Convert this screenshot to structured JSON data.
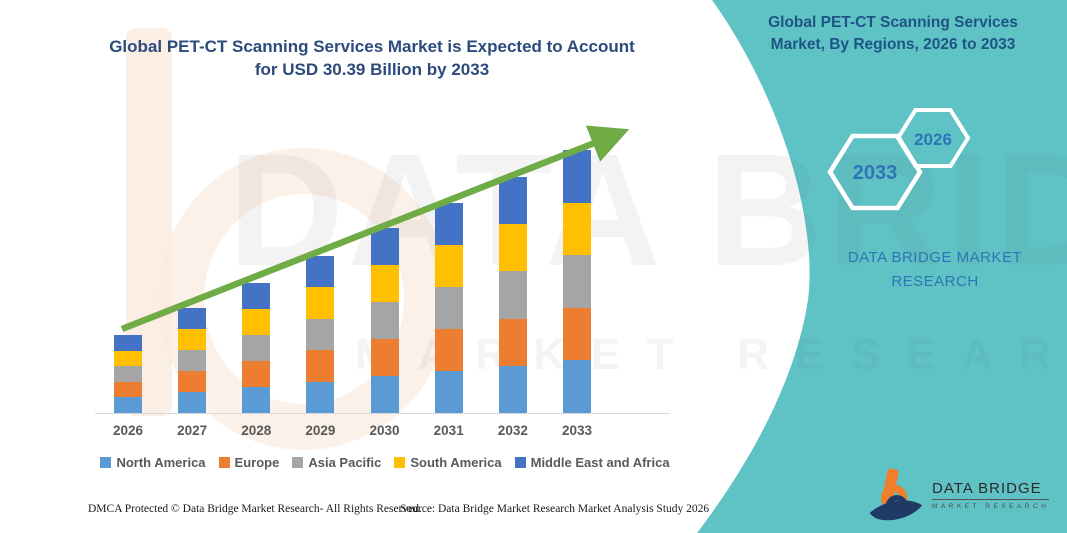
{
  "colors": {
    "teal_background": "#5fc3c6",
    "title_blue": "#2c4b7c",
    "heading_blue": "#1e5483",
    "brand_blue": "#2e75b6",
    "arrow_green": "#6fac46",
    "axis_label_gray": "#595959",
    "logo_orange": "#f07e2a",
    "logo_navy": "#203a66"
  },
  "left": {
    "title_line1": "Global PET-CT Scanning Services Market is Expected to Account",
    "title_line2": "for USD 30.39 Billion by 2033",
    "footer_left": "DMCA Protected © Data Bridge Market Research-  All Rights Reserved.",
    "footer_right": "Source: Data Bridge Market Research  Market Analysis Study 2026"
  },
  "right": {
    "heading_line1": "Global PET-CT Scanning Services",
    "heading_line2": "Market, By Regions, 2026 to 2033",
    "hexagons": [
      {
        "year": "2033"
      },
      {
        "year": "2026"
      }
    ],
    "brand_text": "DATA BRIDGE MARKET RESEARCH",
    "logo": {
      "name": "DATA BRIDGE",
      "tagline": "MARKET RESEARCH"
    }
  },
  "watermark": {
    "big_text": "DATA BRIDGE",
    "sub_text": "MARKET RESEARCH"
  },
  "chart_data": {
    "type": "bar",
    "stacked": true,
    "title": "Global PET-CT Scanning Services Market, By Regions, 2026 to 2033",
    "unit": "USD Billion",
    "categories": [
      "2026",
      "2027",
      "2028",
      "2029",
      "2030",
      "2031",
      "2032",
      "2033"
    ],
    "totals": [
      9.0,
      12.1,
      15.0,
      18.2,
      21.4,
      24.3,
      27.3,
      30.39
    ],
    "series": [
      {
        "name": "North America",
        "color": "#5B9BD5",
        "values": [
          1.8,
          2.42,
          3.0,
          3.64,
          4.28,
          4.86,
          5.46,
          6.08
        ]
      },
      {
        "name": "Europe",
        "color": "#ED7D31",
        "values": [
          1.8,
          2.42,
          3.0,
          3.64,
          4.28,
          4.86,
          5.46,
          6.08
        ]
      },
      {
        "name": "Asia Pacific",
        "color": "#A5A5A5",
        "values": [
          1.8,
          2.42,
          3.0,
          3.64,
          4.28,
          4.86,
          5.46,
          6.08
        ]
      },
      {
        "name": "South America",
        "color": "#FFC000",
        "values": [
          1.8,
          2.42,
          3.0,
          3.64,
          4.28,
          4.86,
          5.46,
          6.08
        ]
      },
      {
        "name": "Middle East and Africa",
        "color": "#4472C4",
        "values": [
          1.8,
          2.42,
          3.0,
          3.64,
          4.28,
          4.86,
          5.46,
          6.08
        ]
      }
    ],
    "trend_line": {
      "color": "#6fac46",
      "style": "arrow",
      "from_year": "2026",
      "to_year": "2033"
    },
    "legend_position": "bottom",
    "y_axis_visible": false,
    "grid": false
  }
}
